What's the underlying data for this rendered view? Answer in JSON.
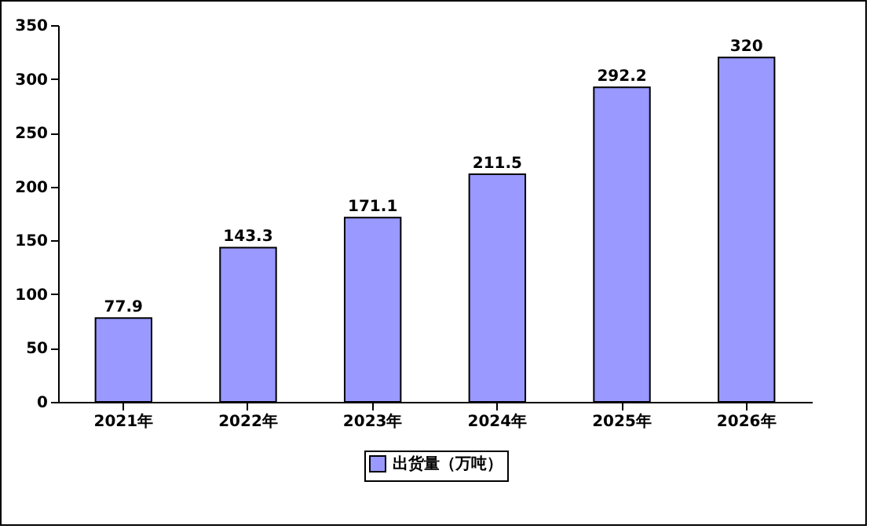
{
  "chart_data": {
    "type": "bar",
    "categories": [
      "2021年",
      "2022年",
      "2023年",
      "2024年",
      "2025年",
      "2026年"
    ],
    "series": [
      {
        "name": "出货量（万吨）",
        "color": "#9999ff",
        "values": [
          77.9,
          143.3,
          171.1,
          211.5,
          292.2,
          320
        ]
      }
    ],
    "ylim": [
      0,
      350
    ],
    "yticks": [
      0,
      50,
      100,
      150,
      200,
      250,
      300,
      350
    ],
    "data_labels": true,
    "grid": false,
    "legend": "bottom"
  }
}
